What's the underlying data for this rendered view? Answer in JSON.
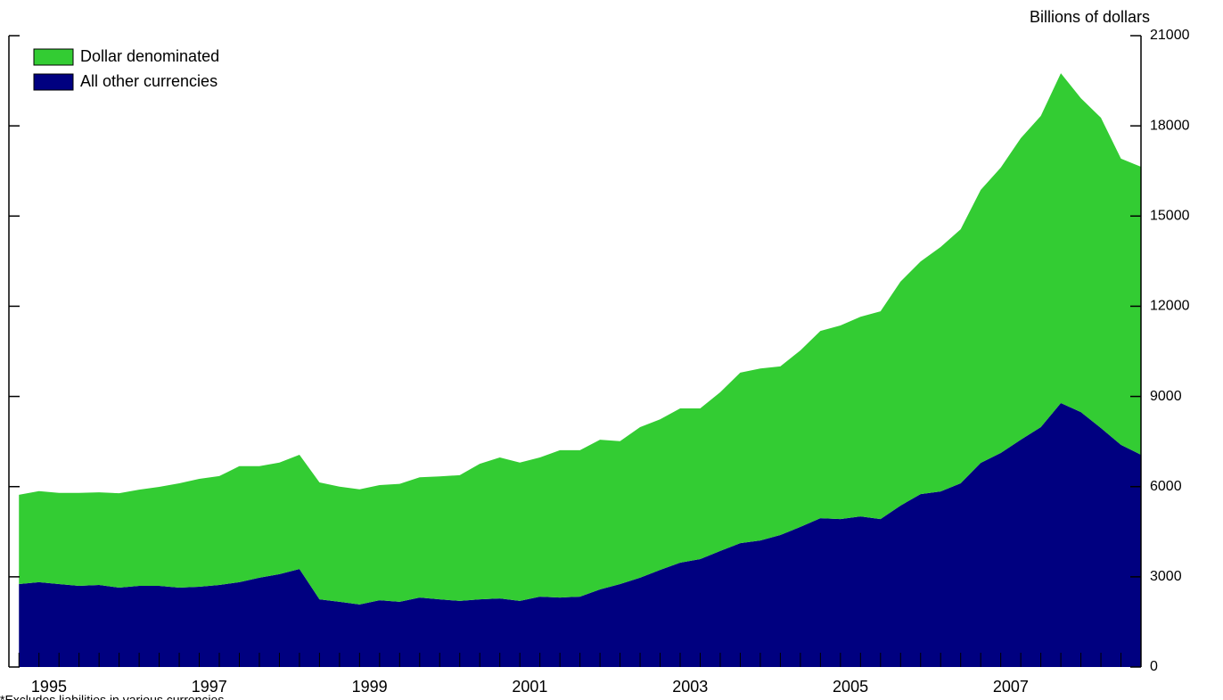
{
  "chart_data": {
    "type": "stacked_area",
    "y_axis_label": "Billions of dollars",
    "note": "*Excludes liabilities in various currencies",
    "x": [
      1994.625,
      1994.875,
      1995.125,
      1995.375,
      1995.625,
      1995.875,
      1996.125,
      1996.375,
      1996.625,
      1996.875,
      1997.125,
      1997.375,
      1997.625,
      1997.875,
      1998.125,
      1998.375,
      1998.625,
      1998.875,
      1999.125,
      1999.375,
      1999.625,
      1999.875,
      2000.125,
      2000.375,
      2000.625,
      2000.875,
      2001.125,
      2001.375,
      2001.625,
      2001.875,
      2002.125,
      2002.375,
      2002.625,
      2002.875,
      2003.125,
      2003.375,
      2003.625,
      2003.875,
      2004.125,
      2004.375,
      2004.625,
      2004.875,
      2005.125,
      2005.375,
      2005.625,
      2005.875,
      2006.125,
      2006.375,
      2006.625,
      2006.875,
      2007.125,
      2007.375,
      2007.625,
      2007.875,
      2008.125,
      2008.375,
      2008.625
    ],
    "series": [
      {
        "name": "Dollar denominated",
        "color": "#33cc33",
        "values": [
          2970,
          3030,
          3030,
          3090,
          3080,
          3140,
          3200,
          3290,
          3470,
          3590,
          3620,
          3860,
          3710,
          3710,
          3800,
          3890,
          3830,
          3830,
          3830,
          3920,
          4000,
          4090,
          4180,
          4510,
          4690,
          4600,
          4630,
          4900,
          4870,
          4980,
          4750,
          5010,
          5010,
          5130,
          5010,
          5280,
          5670,
          5720,
          5610,
          5870,
          6230,
          6440,
          6640,
          6910,
          7450,
          7740,
          8130,
          8450,
          9080,
          9490,
          10030,
          10350,
          10970,
          10440,
          10320,
          9520,
          9580
        ]
      },
      {
        "name": "All other currencies",
        "color": "#000080",
        "values": [
          2760,
          2820,
          2760,
          2700,
          2730,
          2640,
          2700,
          2700,
          2640,
          2670,
          2730,
          2820,
          2970,
          3090,
          3260,
          2250,
          2170,
          2080,
          2220,
          2170,
          2310,
          2250,
          2200,
          2250,
          2280,
          2200,
          2340,
          2310,
          2340,
          2580,
          2760,
          2970,
          3230,
          3470,
          3590,
          3860,
          4120,
          4210,
          4390,
          4660,
          4950,
          4920,
          5010,
          4920,
          5370,
          5750,
          5840,
          6110,
          6790,
          7120,
          7560,
          7980,
          8780,
          8480,
          7950,
          7390,
          7060
        ]
      }
    ],
    "xlim": [
      1994.5,
      2008.625
    ],
    "xticks": [
      1995,
      1997,
      1999,
      2001,
      2003,
      2005,
      2007
    ],
    "ylim": [
      0,
      21000
    ],
    "yticks": [
      0,
      3000,
      6000,
      9000,
      12000,
      15000,
      18000,
      21000
    ],
    "legend": "top-left"
  }
}
